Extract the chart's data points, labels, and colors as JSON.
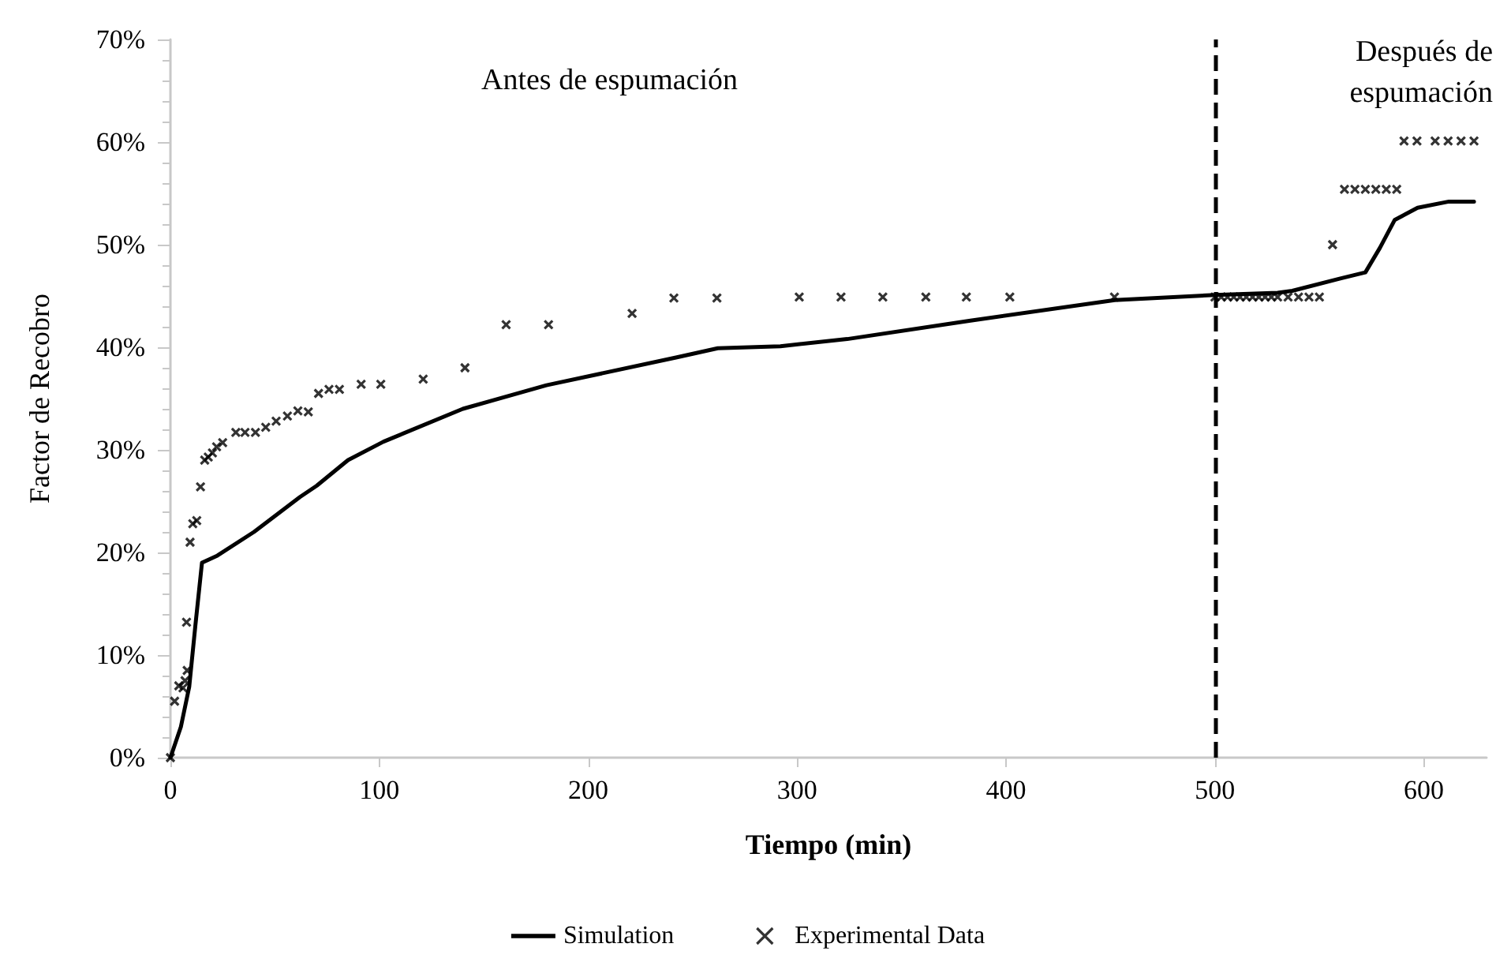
{
  "chart_data": {
    "type": "line",
    "xlabel": "Tiempo (min)",
    "ylabel": "Factor de Recobro",
    "xlim": [
      0,
      630
    ],
    "xticks": [
      0,
      100,
      200,
      300,
      400,
      500,
      600
    ],
    "ylim": [
      0,
      70
    ],
    "yticks": [
      {
        "value": 0,
        "label": "0%"
      },
      {
        "value": 10,
        "label": "10%"
      },
      {
        "value": 20,
        "label": "20%"
      },
      {
        "value": 30,
        "label": "30%"
      },
      {
        "value": 40,
        "label": "40%"
      },
      {
        "value": 50,
        "label": "50%"
      },
      {
        "value": 60,
        "label": "60%"
      },
      {
        "value": 70,
        "label": "70%"
      }
    ],
    "grid": false,
    "legend": "bottom",
    "annotations": [
      "Antes de espumación",
      "Después de\nespumación"
    ],
    "ref_lines": [
      {
        "axis": "x",
        "value": 500,
        "label": null,
        "color": "#000000",
        "line_style": "dashed"
      }
    ],
    "series": [
      {
        "name": "Simulation",
        "color": "#000000",
        "marker": "none",
        "line_style": "solid",
        "x": [
          0,
          5,
          9,
          12,
          15.1,
          22.5,
          40,
          62,
          70,
          85,
          102,
          140,
          180,
          242,
          262,
          292,
          324,
          383,
          452,
          500,
          530,
          537,
          560,
          572,
          579,
          586,
          597,
          612,
          624
        ],
        "values": [
          0,
          3,
          6.9,
          13,
          19,
          19.7,
          22,
          25.4,
          26.5,
          29,
          30.8,
          34,
          36.3,
          39,
          39.9,
          40.1,
          40.8,
          42.6,
          44.6,
          45.1,
          45.3,
          45.5,
          46.7,
          47.3,
          49.7,
          52.4,
          53.6,
          54.2,
          54.2
        ]
      },
      {
        "name": "Experimental Data",
        "type": "scatter",
        "color": "#000000",
        "marker": "cross",
        "x": [
          0,
          2,
          4,
          6,
          7,
          8,
          7.7,
          9.4,
          10.7,
          12.6,
          14.4,
          16.4,
          18.1,
          20.1,
          22.1,
          25,
          31.3,
          35.7,
          40.7,
          45.6,
          50.6,
          56,
          61,
          66,
          70.9,
          75.9,
          80.9,
          91.3,
          100.7,
          121,
          141,
          160.7,
          181,
          221,
          241,
          261.6,
          301,
          321,
          341,
          361.6,
          381,
          401.8,
          451.9,
          500,
          503,
          506,
          509,
          512,
          515,
          518,
          521,
          524,
          527,
          530,
          535,
          540,
          545,
          550,
          556.3,
          562,
          567,
          572,
          577,
          582,
          587,
          590.5,
          596.7,
          605.4,
          611.6,
          617.8,
          624
        ],
        "values": [
          0,
          5.5,
          7,
          6.8,
          7.5,
          8.5,
          13.2,
          21,
          22.8,
          23.1,
          26.4,
          29,
          29.3,
          29.7,
          30.3,
          30.7,
          31.7,
          31.7,
          31.7,
          32.2,
          32.8,
          33.3,
          33.8,
          33.7,
          35.5,
          35.9,
          35.9,
          36.4,
          36.4,
          36.9,
          38,
          42.2,
          42.2,
          43.3,
          44.8,
          44.8,
          44.9,
          44.9,
          44.9,
          44.9,
          44.9,
          44.9,
          44.9,
          44.9,
          44.9,
          44.9,
          44.9,
          44.9,
          44.9,
          44.9,
          44.9,
          44.9,
          44.9,
          44.9,
          44.9,
          44.9,
          44.9,
          44.9,
          50,
          55.4,
          55.4,
          55.4,
          55.4,
          55.4,
          55.4,
          60.1,
          60.1,
          60.1,
          60.1,
          60.1,
          60.1
        ]
      }
    ]
  }
}
